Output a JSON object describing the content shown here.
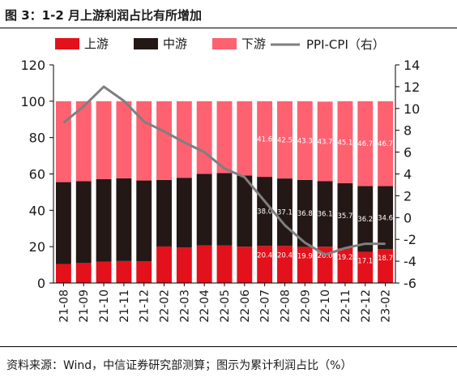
{
  "figure": {
    "title": "图 3：1-2 月上游利润占比有所增加",
    "source": "资料来源：Wind，中信证券研究部测算；图示为累计利润占比（%）"
  },
  "colors": {
    "upstream": "#e3111b",
    "midstream": "#231815",
    "downstream": "#fe6170",
    "ppi_cpi": "#7f7f7f",
    "bar_label": "#ffffff"
  },
  "chart_data": {
    "type": "bar",
    "stacked": true,
    "categories": [
      "21-08",
      "21-09",
      "21-10",
      "21-11",
      "21-12",
      "22-02",
      "22-03",
      "22-04",
      "22-05",
      "22-06",
      "22-07",
      "22-08",
      "22-09",
      "22-10",
      "22-11",
      "22-12",
      "23-02"
    ],
    "series": [
      {
        "name": "上游",
        "axis": "left",
        "color_key": "upstream",
        "values": [
          10.5,
          11.0,
          11.7,
          12.1,
          11.9,
          20.1,
          19.5,
          20.7,
          20.6,
          20.0,
          20.4,
          20.4,
          19.9,
          20.0,
          19.2,
          17.1,
          18.7
        ]
      },
      {
        "name": "中游",
        "axis": "left",
        "color_key": "midstream",
        "values": [
          45.0,
          45.0,
          45.5,
          45.5,
          44.5,
          36.6,
          38.4,
          39.3,
          39.9,
          39.1,
          38.0,
          37.1,
          36.8,
          36.1,
          35.7,
          36.2,
          34.6
        ]
      },
      {
        "name": "下游",
        "axis": "left",
        "color_key": "downstream",
        "values": [
          44.5,
          44.0,
          42.8,
          42.4,
          43.6,
          43.3,
          42.1,
          40.0,
          39.5,
          40.9,
          41.6,
          42.5,
          43.3,
          43.7,
          45.1,
          46.7,
          46.7
        ]
      },
      {
        "name": "PPI-CPI（右）",
        "axis": "right",
        "type": "line",
        "color_key": "ppi_cpi",
        "values": [
          8.7,
          10.2,
          12.0,
          10.7,
          8.8,
          7.9,
          6.9,
          6.0,
          4.5,
          3.7,
          1.5,
          -0.7,
          -2.3,
          -3.4,
          -2.8,
          -2.4,
          -2.4
        ]
      }
    ],
    "data_labels": {
      "start_index": 10,
      "upstream": [
        "20.4",
        "20.4",
        "19.9",
        "20.0",
        "19.2",
        "17.1",
        "18.7"
      ],
      "midstream": [
        "38.0",
        "37.1",
        "36.8",
        "36.1",
        "35.7",
        "36.2",
        "34.6"
      ],
      "downstream": [
        "41.6",
        "42.5",
        "43.3",
        "43.7",
        "45.1",
        "46.7",
        "46.7"
      ]
    },
    "y_left": {
      "min": 0,
      "max": 120,
      "ticks": [
        "0",
        "20",
        "40",
        "60",
        "80",
        "100",
        "120"
      ]
    },
    "y_right": {
      "min": -6,
      "max": 14,
      "ticks": [
        "-6",
        "-4",
        "-2",
        "0",
        "2",
        "4",
        "6",
        "8",
        "10",
        "12",
        "14"
      ]
    },
    "legend": {
      "position": "top"
    },
    "grid": false
  }
}
